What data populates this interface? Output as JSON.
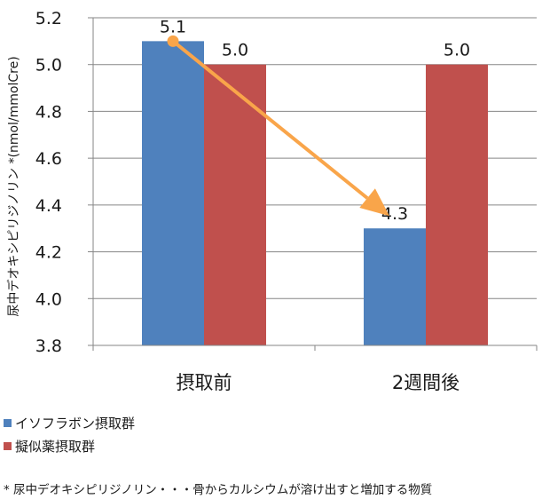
{
  "chart_data": {
    "type": "bar",
    "categories": [
      "摂取前",
      "2週間後"
    ],
    "series": [
      {
        "name": "イソフラボン摂取群",
        "values": [
          5.1,
          4.3
        ],
        "color": "#4f81bd"
      },
      {
        "name": "擬似薬摂取群",
        "values": [
          5.0,
          5.0
        ],
        "color": "#c0504d"
      }
    ],
    "data_labels": [
      [
        "5.1",
        "4.3"
      ],
      [
        "5.0",
        "5.0"
      ]
    ],
    "ylabel": "尿中デオキシピリジノリン *(nmol/mmolCre)",
    "ylim": [
      3.8,
      5.2
    ],
    "yticks": [
      "3.8",
      "4.0",
      "4.2",
      "4.4",
      "4.6",
      "4.8",
      "5.0",
      "5.2"
    ],
    "grid": true,
    "legend_position": "bottom-left",
    "annotation": {
      "type": "arrow",
      "from_value": 5.1,
      "to_value": 4.3,
      "series": "イソフラボン摂取群",
      "color": "#f9a54a"
    }
  },
  "footnote": "* 尿中デオキシピリジノリン・・・骨からカルシウムが溶け出すと増加する物質"
}
